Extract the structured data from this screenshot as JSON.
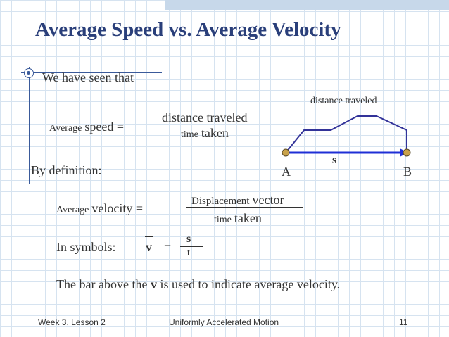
{
  "slide": {
    "title": "Average Speed vs. Average Velocity",
    "intro": "We have seen that",
    "speed_formula": {
      "lhs_small": "Average",
      "lhs_main": "speed =",
      "numerator": "distance traveled",
      "denominator_small": "time",
      "denominator_main": "taken"
    },
    "diagram": {
      "path_label": "distance traveled",
      "displacement_label": "s",
      "point_a": "A",
      "point_b": "B",
      "path_color": "#333399",
      "arrow_color": "#1f2fd6",
      "endpoint_fill": "#c9a24a"
    },
    "definition": "By definition:",
    "velocity_formula": {
      "lhs_small": "Average",
      "lhs_main": "velocity =",
      "numerator_small": "Displacement",
      "numerator_main": "vector",
      "denominator_small": "time",
      "denominator_main": "taken"
    },
    "symbols": {
      "label": "In symbols:",
      "lhs": "v",
      "equals": "=",
      "numerator": "s",
      "denominator": "t"
    },
    "note_part1": "The bar above the ",
    "note_bold": "v",
    "note_part2": " is used to indicate average velocity."
  },
  "footer": {
    "left": "Week 3, Lesson 2",
    "center": "Uniformly Accelerated Motion",
    "page": "11"
  }
}
